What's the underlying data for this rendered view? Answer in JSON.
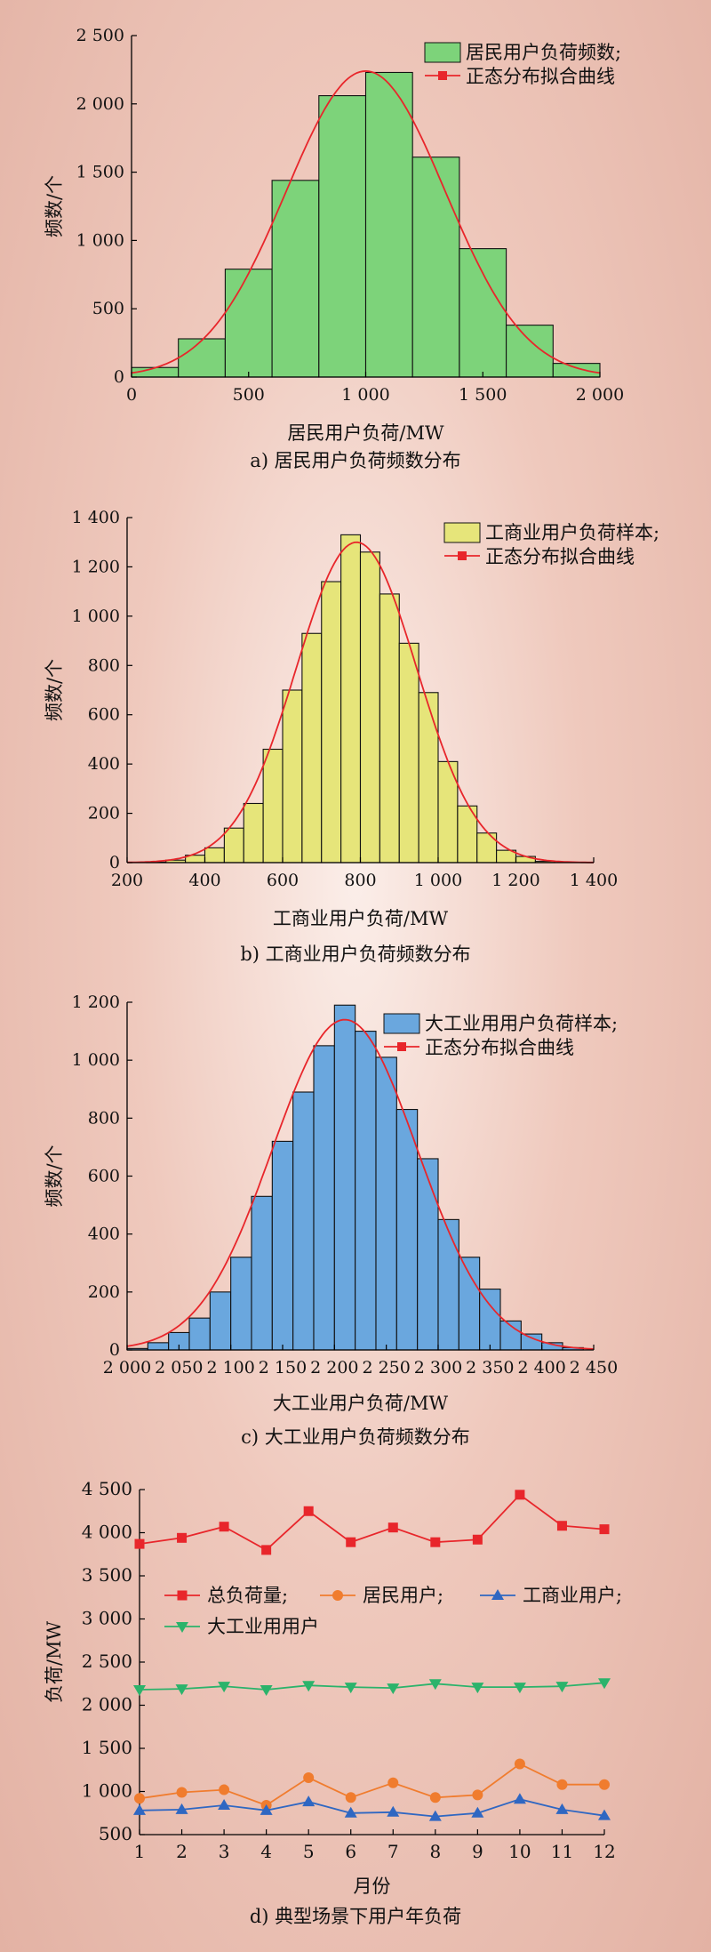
{
  "chart_data": [
    {
      "type": "histogram",
      "title": "a) 居民用户负荷频数分布",
      "xlabel": "居民用户负荷/MW",
      "ylabel": "频数/个",
      "xlim": [
        0,
        2000
      ],
      "ylim": [
        0,
        2500
      ],
      "xticks": [
        0,
        500,
        1000,
        1500,
        2000
      ],
      "xtick_labels": [
        "0",
        "500",
        "1 000",
        "1 500",
        "2 000"
      ],
      "yticks": [
        0,
        500,
        1000,
        1500,
        2000,
        2500
      ],
      "ytick_labels": [
        "0",
        "500",
        "1 000",
        "1 500",
        "2 000",
        "2 500"
      ],
      "bin_width": 200,
      "bins_start": [
        0,
        200,
        400,
        600,
        800,
        1000,
        1200,
        1400,
        1600,
        1800
      ],
      "values": [
        70,
        280,
        790,
        1440,
        2060,
        2230,
        1610,
        940,
        380,
        100
      ],
      "fit": {
        "mean": 1000,
        "sigma": 340,
        "peak": 2240
      },
      "legend": {
        "bar": "居民用户负荷频数;",
        "line": "正态分布拟合曲线"
      },
      "colors": {
        "bar": "#7dd37a",
        "line": "#e8262b"
      }
    },
    {
      "type": "histogram",
      "title": "b) 工商业用户负荷频数分布",
      "xlabel": "工商业用户负荷/MW",
      "ylabel": "频数/个",
      "xlim": [
        200,
        1400
      ],
      "ylim": [
        0,
        1400
      ],
      "xticks": [
        200,
        400,
        600,
        800,
        1000,
        1200,
        1400
      ],
      "xtick_labels": [
        "200",
        "400",
        "600",
        "800",
        "1 000",
        "1 200",
        "1 400"
      ],
      "yticks": [
        0,
        200,
        400,
        600,
        800,
        1000,
        1200,
        1400
      ],
      "ytick_labels": [
        "0",
        "200",
        "400",
        "600",
        "800",
        "1 000",
        "1 200",
        "1 400"
      ],
      "bin_width": 50,
      "bins_start": [
        250,
        300,
        350,
        400,
        450,
        500,
        550,
        600,
        650,
        700,
        750,
        800,
        850,
        900,
        950,
        1000,
        1050,
        1100,
        1150,
        1200,
        1250
      ],
      "values": [
        2,
        10,
        30,
        60,
        140,
        240,
        460,
        700,
        930,
        1140,
        1330,
        1260,
        1090,
        890,
        690,
        410,
        230,
        120,
        50,
        25,
        5
      ],
      "fit": {
        "mean": 790,
        "sigma": 155,
        "peak": 1300
      },
      "legend": {
        "bar": "工商业用户负荷样本;",
        "line": "正态分布拟合曲线"
      },
      "colors": {
        "bar": "#e6e57a",
        "line": "#e8262b"
      }
    },
    {
      "type": "histogram",
      "title": "c) 大工业用户负荷频数分布",
      "xlabel": "大工业用户负荷/MW",
      "ylabel": "频数/个",
      "xlim": [
        2000,
        2450
      ],
      "ylim": [
        0,
        1200
      ],
      "xticks": [
        2000,
        2050,
        2100,
        2150,
        2200,
        2250,
        2300,
        2350,
        2400,
        2450
      ],
      "xtick_labels": [
        "2 000",
        "2 050",
        "2 100",
        "2 150",
        "2 200",
        "2 250",
        "2 300",
        "2 350",
        "2 400",
        "2 450"
      ],
      "yticks": [
        0,
        200,
        400,
        600,
        800,
        1000,
        1200
      ],
      "ytick_labels": [
        "0",
        "200",
        "400",
        "600",
        "800",
        "1 000",
        "1 200"
      ],
      "bin_width": 20,
      "bins_start": [
        2000,
        2020,
        2040,
        2060,
        2080,
        2100,
        2120,
        2140,
        2160,
        2180,
        2200,
        2220,
        2240,
        2260,
        2280,
        2300,
        2320,
        2340,
        2360,
        2380,
        2400,
        2420
      ],
      "values": [
        5,
        25,
        60,
        110,
        200,
        320,
        530,
        720,
        890,
        1050,
        1190,
        1100,
        1010,
        830,
        660,
        450,
        320,
        210,
        100,
        55,
        25,
        8
      ],
      "fit": {
        "mean": 2210,
        "sigma": 70,
        "peak": 1140
      },
      "legend": {
        "bar": "大工业用用户负荷样本;",
        "line": "正态分布拟合曲线"
      },
      "colors": {
        "bar": "#6aa7de",
        "line": "#e8262b"
      }
    },
    {
      "type": "line",
      "title": "d) 典型场景下用户年负荷",
      "xlabel": "月份",
      "ylabel": "负荷/MW",
      "xlim": [
        1,
        12
      ],
      "ylim": [
        500,
        4500
      ],
      "x": [
        1,
        2,
        3,
        4,
        5,
        6,
        7,
        8,
        9,
        10,
        11,
        12
      ],
      "xtick_labels": [
        "1",
        "2",
        "3",
        "4",
        "5",
        "6",
        "7",
        "8",
        "9",
        "10",
        "11",
        "12"
      ],
      "yticks": [
        500,
        1000,
        1500,
        2000,
        2500,
        3000,
        3500,
        4000,
        4500
      ],
      "ytick_labels": [
        "500",
        "1 000",
        "1 500",
        "2 000",
        "2 500",
        "3 000",
        "3 500",
        "4 000",
        "4 500"
      ],
      "series": [
        {
          "name": "总负荷量;",
          "color": "#e8262b",
          "marker": "square",
          "values": [
            3870,
            3940,
            4070,
            3800,
            4250,
            3890,
            4060,
            3890,
            3920,
            4440,
            4080,
            4040
          ]
        },
        {
          "name": "居民用户;",
          "color": "#f07c2e",
          "marker": "circle",
          "values": [
            920,
            990,
            1020,
            840,
            1160,
            930,
            1100,
            930,
            960,
            1320,
            1080,
            1080
          ]
        },
        {
          "name": "工商业用户;",
          "color": "#2f67c2",
          "marker": "triangle-up",
          "values": [
            780,
            790,
            840,
            780,
            880,
            750,
            760,
            710,
            750,
            910,
            790,
            720
          ]
        },
        {
          "name": "大工业用用户",
          "color": "#2bb36b",
          "marker": "triangle-down",
          "values": [
            2180,
            2190,
            2220,
            2180,
            2230,
            2210,
            2200,
            2250,
            2210,
            2210,
            2220,
            2260
          ]
        }
      ]
    }
  ]
}
